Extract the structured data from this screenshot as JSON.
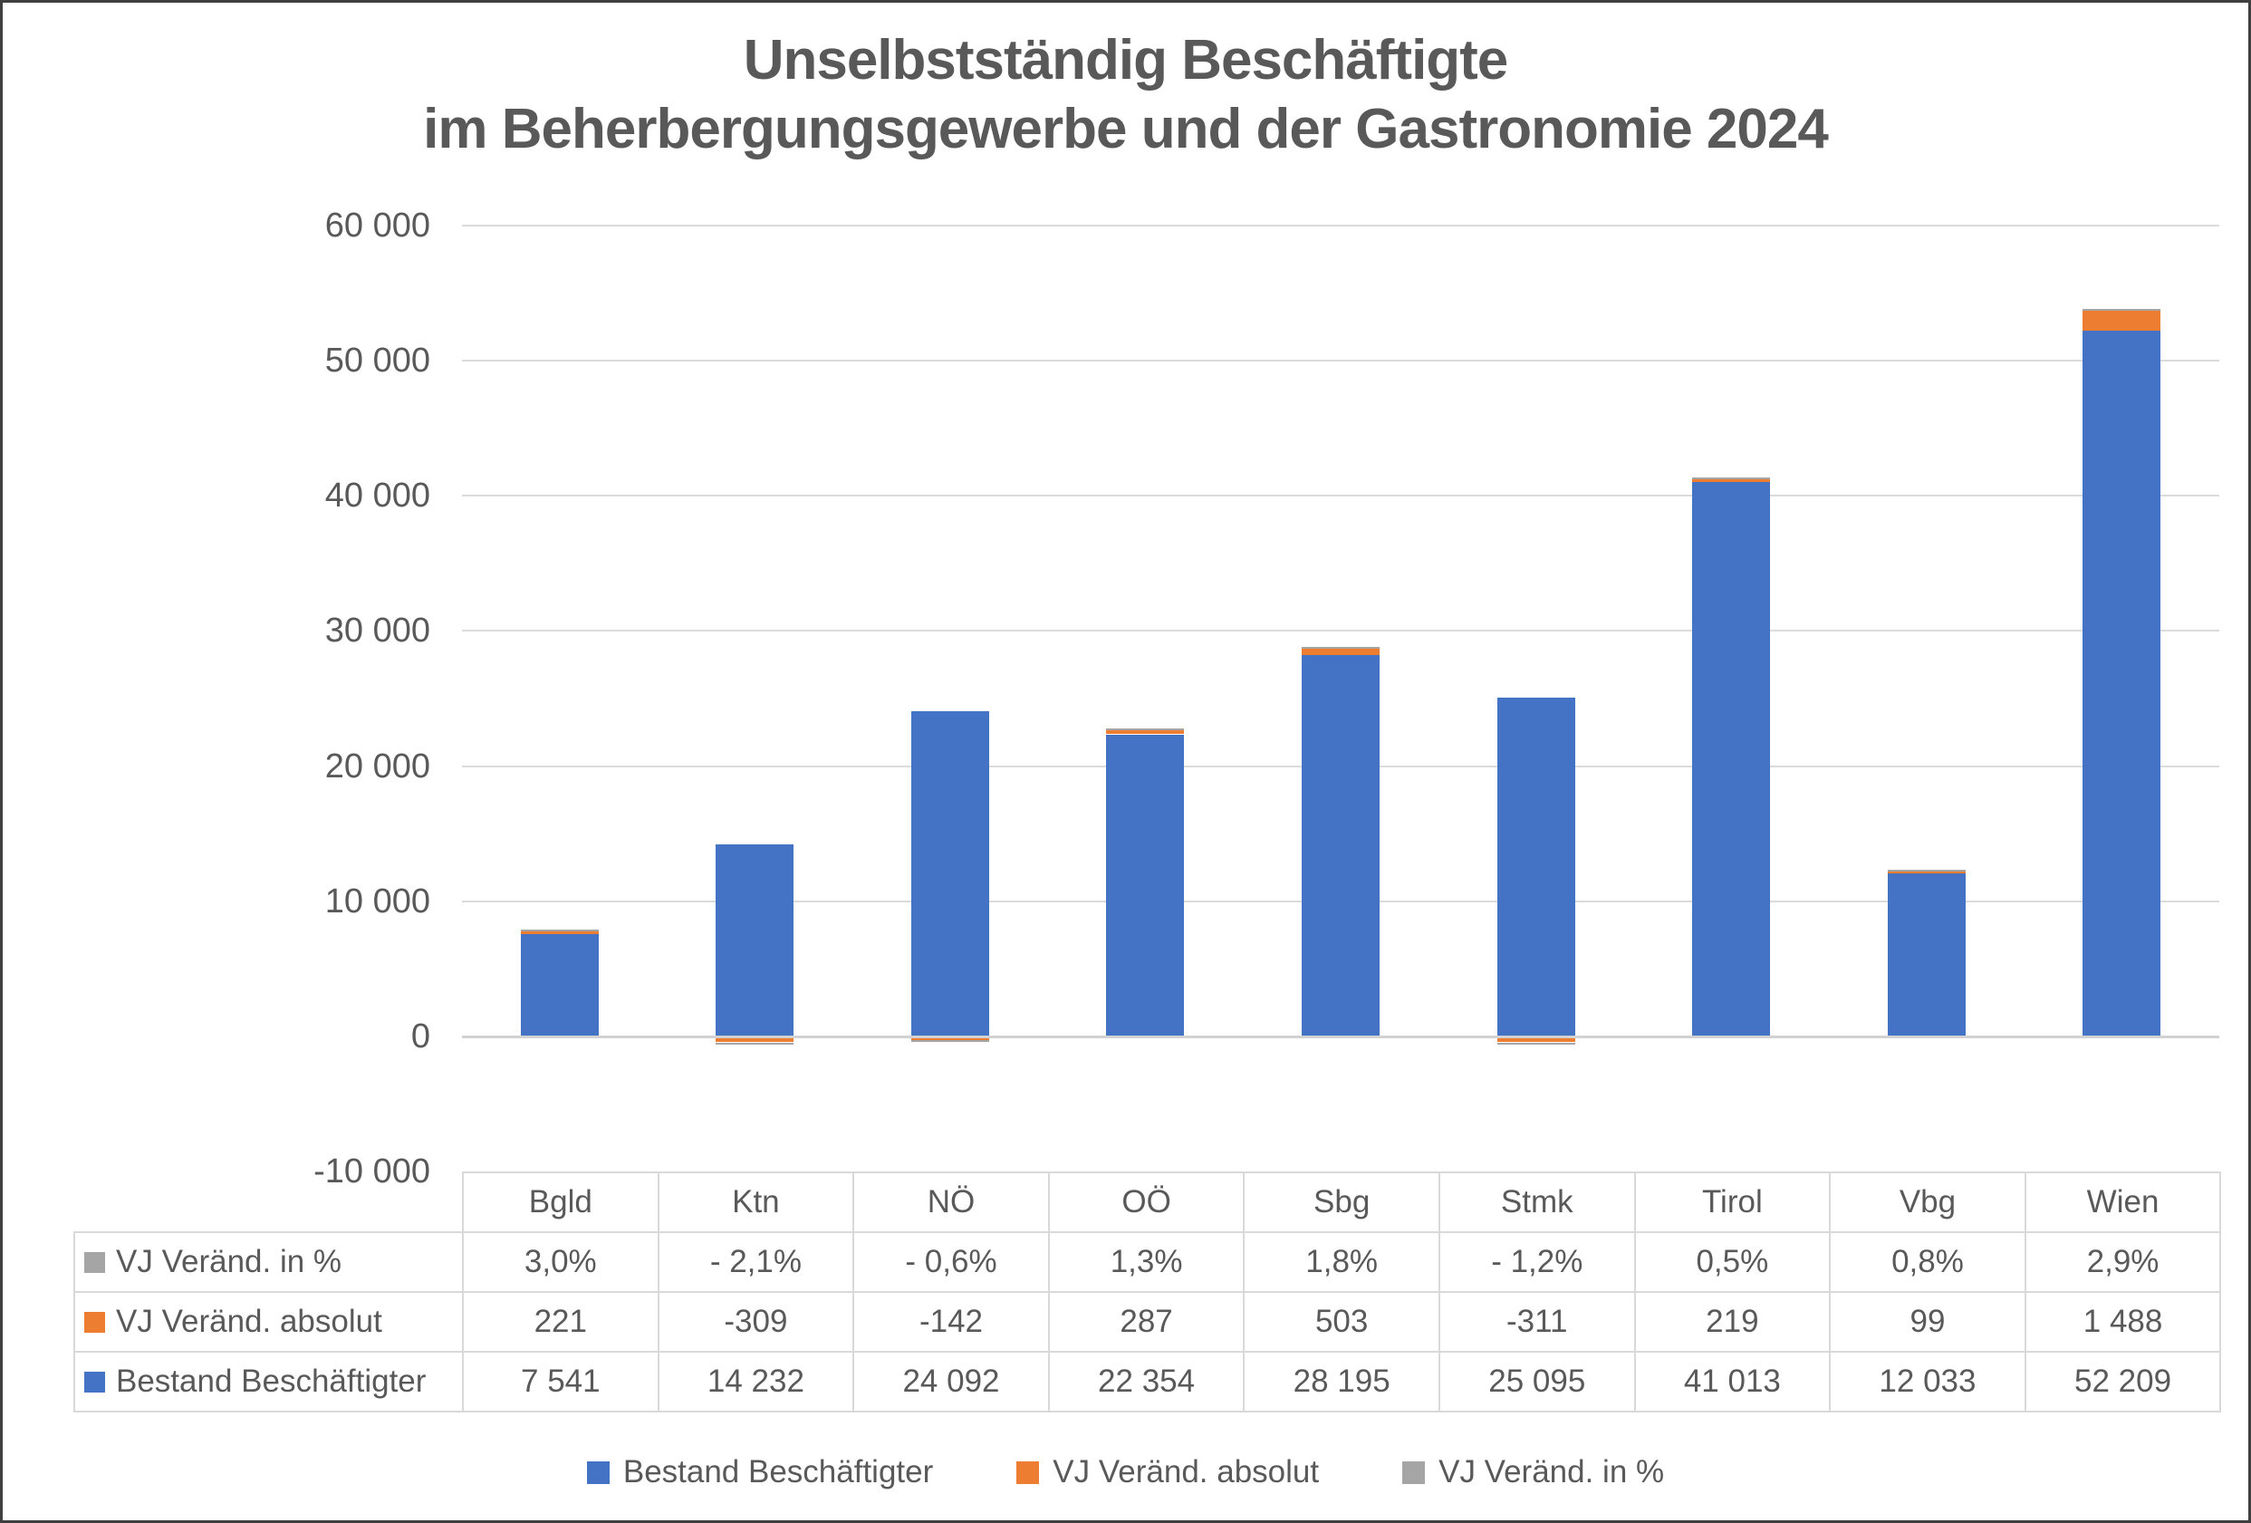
{
  "title": {
    "line1": "Unselbstständig Beschäftigte",
    "line2": "im Beherbergungsgewerbe und der Gastronomie 2024"
  },
  "chart_data": {
    "type": "bar",
    "stacked": true,
    "title": "Unselbstständig Beschäftigte im Beherbergungsgewerbe und der Gastronomie 2024",
    "categories": [
      "Bgld",
      "Ktn",
      "NÖ",
      "OÖ",
      "Sbg",
      "Stmk",
      "Tirol",
      "Vbg",
      "Wien"
    ],
    "series": [
      {
        "name": "Bestand Beschäftigter",
        "color": "#4472C4",
        "values": [
          7541,
          14232,
          24092,
          22354,
          28195,
          25095,
          41013,
          12033,
          52209
        ]
      },
      {
        "name": "VJ Veränd. absolut",
        "color": "#ED7D31",
        "values": [
          221,
          -309,
          -142,
          287,
          503,
          -311,
          219,
          99,
          1488
        ]
      },
      {
        "name": "VJ Veränd. in %",
        "color": "#A5A5A5",
        "values": [
          3.0,
          -2.1,
          -0.6,
          1.3,
          1.8,
          -1.2,
          0.5,
          0.8,
          2.9
        ]
      }
    ],
    "ylim": [
      -10000,
      60000
    ],
    "ytick_step": 10000,
    "ytick_labels": [
      "60 000",
      "50 000",
      "40 000",
      "30 000",
      "20 000",
      "10 000",
      "0",
      "-10 000"
    ],
    "grid": true,
    "legend_position": "bottom"
  },
  "table": {
    "column_headers": [
      "Bgld",
      "Ktn",
      "NÖ",
      "OÖ",
      "Sbg",
      "Stmk",
      "Tirol",
      "Vbg",
      "Wien"
    ],
    "rows": [
      {
        "label": "VJ Veränd. in %",
        "key_color": "#A5A5A5",
        "values": [
          "3,0%",
          "- 2,1%",
          "- 0,6%",
          "1,3%",
          "1,8%",
          "- 1,2%",
          "0,5%",
          "0,8%",
          "2,9%"
        ]
      },
      {
        "label": "VJ Veränd. absolut",
        "key_color": "#ED7D31",
        "values": [
          "221",
          "-309",
          "-142",
          "287",
          "503",
          "-311",
          "219",
          "99",
          "1 488"
        ]
      },
      {
        "label": "Bestand Beschäftigter",
        "key_color": "#4472C4",
        "values": [
          "7 541",
          "14 232",
          "24 092",
          "22 354",
          "28 195",
          "25 095",
          "41 013",
          "12 033",
          "52 209"
        ]
      }
    ]
  },
  "legend": {
    "items": [
      {
        "label": "Bestand Beschäftigter",
        "color": "#4472C4"
      },
      {
        "label": "VJ Veränd. absolut",
        "color": "#ED7D31"
      },
      {
        "label": "VJ Veränd. in %",
        "color": "#A5A5A5"
      }
    ]
  },
  "colors": {
    "text": "#595959",
    "gridline": "#DBDBDB",
    "axis_line": "#D2D2D2",
    "table_border": "#D9D9D9",
    "background": "#FFFFFF",
    "frame": "#3F3F3F"
  }
}
